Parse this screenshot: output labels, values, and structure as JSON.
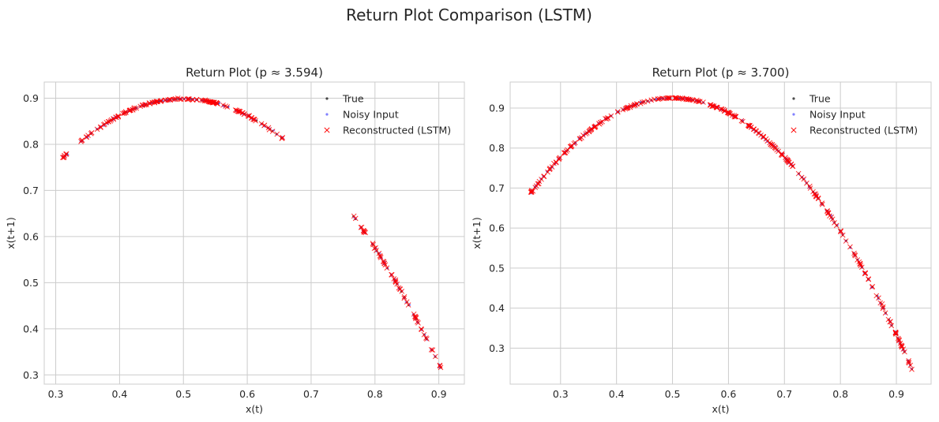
{
  "figure": {
    "title": "Return Plot Comparison (LSTM)"
  },
  "chart_data": [
    {
      "type": "scatter",
      "title": "Return Plot (p ≈ 3.594)",
      "xlabel": "x(t)",
      "ylabel": "x(t+1)",
      "r": 3.594,
      "x_visible_range": [
        0.31,
        0.905
      ],
      "xlim": [
        0.282,
        0.94
      ],
      "ylim": [
        0.28,
        0.935
      ],
      "xticks": [
        0.3,
        0.4,
        0.5,
        0.6,
        0.7,
        0.8,
        0.9
      ],
      "yticks": [
        0.3,
        0.4,
        0.5,
        0.6,
        0.7,
        0.8,
        0.9
      ],
      "xtick_labels": [
        "0.3",
        "0.4",
        "0.5",
        "0.6",
        "0.7",
        "0.8",
        "0.9"
      ],
      "ytick_labels": [
        "0.3",
        "0.4",
        "0.5",
        "0.6",
        "0.7",
        "0.8",
        "0.9"
      ],
      "segments": [
        [
          0.31,
          0.655
        ],
        [
          0.765,
          0.905
        ]
      ],
      "grid": true,
      "legend_position": "top-right",
      "legend": [
        "True",
        "Noisy Input",
        "Reconstructed (LSTM)"
      ],
      "series": [
        {
          "name": "True",
          "color": "#000000",
          "marker": "dot"
        },
        {
          "name": "Noisy Input",
          "color": "#4b4bff",
          "marker": "dot"
        },
        {
          "name": "Reconstructed (LSTM)",
          "color": "#ff0000",
          "marker": "x"
        }
      ]
    },
    {
      "type": "scatter",
      "title": "Return Plot (p ≈ 3.700)",
      "xlabel": "x(t)",
      "ylabel": "x(t+1)",
      "r": 3.7,
      "x_visible_range": [
        0.245,
        0.928
      ],
      "xlim": [
        0.21,
        0.962
      ],
      "ylim": [
        0.21,
        0.965
      ],
      "xticks": [
        0.3,
        0.4,
        0.5,
        0.6,
        0.7,
        0.8,
        0.9
      ],
      "yticks": [
        0.3,
        0.4,
        0.5,
        0.6,
        0.7,
        0.8,
        0.9
      ],
      "xtick_labels": [
        "0.3",
        "0.4",
        "0.5",
        "0.6",
        "0.7",
        "0.8",
        "0.9"
      ],
      "ytick_labels": [
        "0.3",
        "0.4",
        "0.5",
        "0.6",
        "0.7",
        "0.8",
        "0.9"
      ],
      "segments": [
        [
          0.245,
          0.928
        ]
      ],
      "grid": true,
      "legend_position": "top-right",
      "legend": [
        "True",
        "Noisy Input",
        "Reconstructed (LSTM)"
      ],
      "series": [
        {
          "name": "True",
          "color": "#000000",
          "marker": "dot"
        },
        {
          "name": "Noisy Input",
          "color": "#4b4bff",
          "marker": "dot"
        },
        {
          "name": "Reconstructed (LSTM)",
          "color": "#ff0000",
          "marker": "x"
        }
      ]
    }
  ]
}
